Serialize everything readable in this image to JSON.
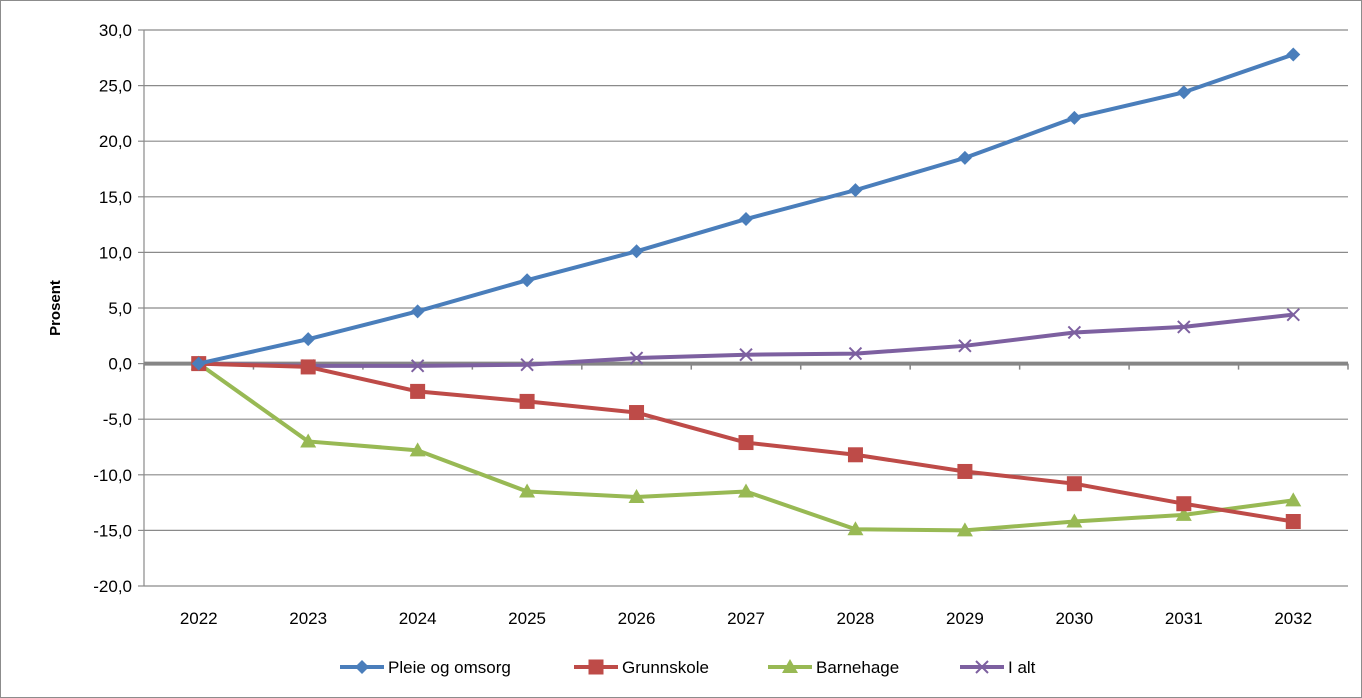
{
  "chart_data": {
    "type": "line",
    "ylabel": "Prosent",
    "ylim": [
      -20,
      30
    ],
    "ytick_step": 5,
    "ytick_labels": [
      "30,0",
      "25,0",
      "20,0",
      "15,0",
      "10,0",
      "5,0",
      "0,0",
      "-5,0",
      "-10,0",
      "-15,0",
      "-20,0"
    ],
    "categories": [
      "2022",
      "2023",
      "2024",
      "2025",
      "2026",
      "2027",
      "2028",
      "2029",
      "2030",
      "2031",
      "2032"
    ],
    "grid": true,
    "legend_position": "bottom",
    "series": [
      {
        "name": "Pleie og omsorg",
        "color": "#4a7ebb",
        "marker": "diamond",
        "values": [
          0.0,
          2.2,
          4.7,
          7.5,
          10.1,
          13.0,
          15.6,
          18.5,
          22.1,
          24.4,
          27.8
        ]
      },
      {
        "name": "Grunnskole",
        "color": "#be4b48",
        "marker": "square",
        "values": [
          0.0,
          -0.3,
          -2.5,
          -3.4,
          -4.4,
          -7.1,
          -8.2,
          -9.7,
          -10.8,
          -12.6,
          -14.2
        ]
      },
      {
        "name": "Barnehage",
        "color": "#98b954",
        "marker": "triangle",
        "values": [
          0.0,
          -7.0,
          -7.8,
          -11.5,
          -12.0,
          -11.5,
          -14.9,
          -15.0,
          -14.2,
          -13.6,
          -12.3
        ]
      },
      {
        "name": "I alt",
        "color": "#7d60a0",
        "marker": "x",
        "values": [
          0.0,
          -0.2,
          -0.2,
          -0.1,
          0.5,
          0.8,
          0.9,
          1.6,
          2.8,
          3.3,
          4.4
        ]
      }
    ]
  }
}
